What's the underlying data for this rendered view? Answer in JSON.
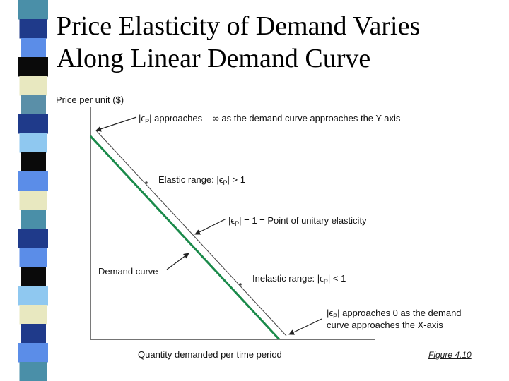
{
  "slide": {
    "title_line1": "Price Elasticity of Demand Varies",
    "title_line2": "Along Linear Demand Curve",
    "figure_label": "Figure 4.10"
  },
  "diagram": {
    "y_axis_label": "Price per unit ($)",
    "x_axis_label": "Quantity demanded per time period",
    "curve_label": "Demand curve",
    "annotations": {
      "y_axis_end": {
        "prefix": "|ϵ",
        "subscript": "P",
        "text": "| approaches – ∞ as the demand curve approaches the Y-axis"
      },
      "elastic": {
        "prefix": "Elastic range: |ϵ",
        "subscript": "P",
        "text": "| > 1"
      },
      "unitary": {
        "prefix": "|ϵ",
        "subscript": "P",
        "text": "| = 1 = Point of unitary elasticity"
      },
      "inelastic": {
        "prefix": "Inelastic range: |ϵ",
        "subscript": "P",
        "text": "| < 1"
      },
      "x_axis_end_line1": {
        "prefix": "|ϵ",
        "subscript": "P",
        "text": "| approaches 0 as the demand"
      },
      "x_axis_end_line2": "curve approaches the X-axis"
    },
    "colors": {
      "curve": "#1a8a4a",
      "axis": "#222222",
      "bracket": "#444444"
    }
  },
  "decor": {
    "stripe_colors": [
      "#4a8fa8",
      "#1f3a8a",
      "#5b8de8",
      "#0a0a0a",
      "#e8e8c0",
      "#5a8fa8",
      "#1f3a8a",
      "#8fc8f0",
      "#0a0a0a",
      "#5b8de8",
      "#e8e8c0",
      "#4a8fa8",
      "#1f3a8a",
      "#5b8de8",
      "#0a0a0a",
      "#8fc8f0",
      "#e8e8c0",
      "#1f3a8a",
      "#5b8de8",
      "#4a8fa8"
    ]
  }
}
